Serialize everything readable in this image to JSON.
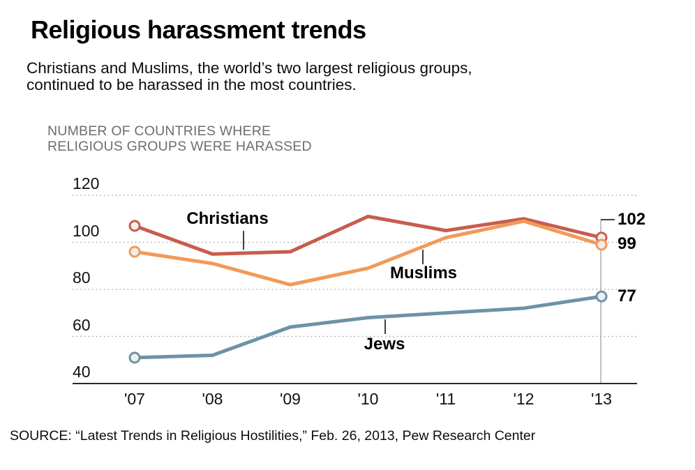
{
  "header": {
    "title": "Religious harassment trends",
    "subtitle_line1": "Christians and Muslims, the world’s two largest religious groups,",
    "subtitle_line2": "continued to be harassed in the most countries."
  },
  "chart_data": {
    "type": "line",
    "title": "Religious harassment trends",
    "unit_label_line1": "NUMBER OF COUNTRIES WHERE",
    "unit_label_line2": "RELIGIOUS GROUPS WERE HARASSED",
    "categories": [
      "'07",
      "'08",
      "'09",
      "'10",
      "'11",
      "'12",
      "'13"
    ],
    "y_ticks": [
      120,
      100,
      80,
      60,
      40
    ],
    "ylim": [
      40,
      120
    ],
    "grid": "horizontal dotted",
    "legend": "inline series labels",
    "series": [
      {
        "name": "Christians",
        "color": "#c75d4f",
        "values": [
          107,
          95,
          96,
          111,
          105,
          110,
          102
        ],
        "end_label": "102"
      },
      {
        "name": "Muslims",
        "color": "#f19a59",
        "values": [
          96,
          91,
          82,
          89,
          102,
          109,
          99
        ],
        "end_label": "99"
      },
      {
        "name": "Jews",
        "color": "#6d92a8",
        "values": [
          51,
          52,
          64,
          68,
          70,
          72,
          77
        ],
        "end_label": "77"
      }
    ]
  },
  "colors": {
    "marker_fill": "#f2eee7",
    "gridline": "#b0b0b0",
    "axis": "#2a2a2a",
    "end_rule": "#9a9a9a",
    "leader": "#000000"
  },
  "footer": {
    "source": "SOURCE: “Latest Trends in Religious Hostilities,” Feb. 26, 2013, Pew Research Center"
  }
}
